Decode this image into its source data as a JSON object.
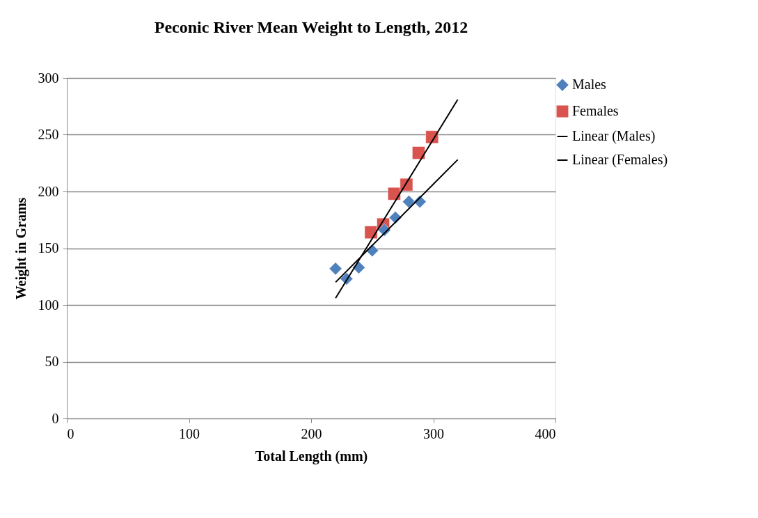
{
  "chart_data": {
    "type": "scatter",
    "title": "Peconic River Mean Weight to Length, 2012",
    "xlabel": "Total Length (mm)",
    "ylabel": "Weight in Grams",
    "xlim": [
      0,
      400
    ],
    "xticks": [
      0,
      100,
      200,
      300,
      400
    ],
    "ylim": [
      0,
      300
    ],
    "yticks": [
      0,
      50,
      100,
      150,
      200,
      250,
      300
    ],
    "grid": "y",
    "legend": "right",
    "series": [
      {
        "name": "Males",
        "marker": "diamond",
        "color": "#4f81bd",
        "x": [
          220,
          229,
          239,
          250,
          260,
          269,
          280,
          289
        ],
        "values": [
          132,
          123,
          133,
          148,
          166,
          177,
          191,
          191
        ]
      },
      {
        "name": "Females",
        "marker": "square",
        "color": "#d9534f",
        "x": [
          249,
          259,
          268,
          278,
          288,
          299
        ],
        "values": [
          164,
          171,
          198,
          206,
          234,
          248
        ]
      },
      {
        "name": "Linear (Males)",
        "type": "line",
        "line_style": "solid",
        "color": "#000000",
        "x": [
          220,
          320
        ],
        "values": [
          120,
          228
        ]
      },
      {
        "name": "Linear (Females)",
        "type": "line",
        "line_style": "solid",
        "color": "#000000",
        "x": [
          220,
          320
        ],
        "values": [
          106,
          281
        ]
      }
    ]
  }
}
